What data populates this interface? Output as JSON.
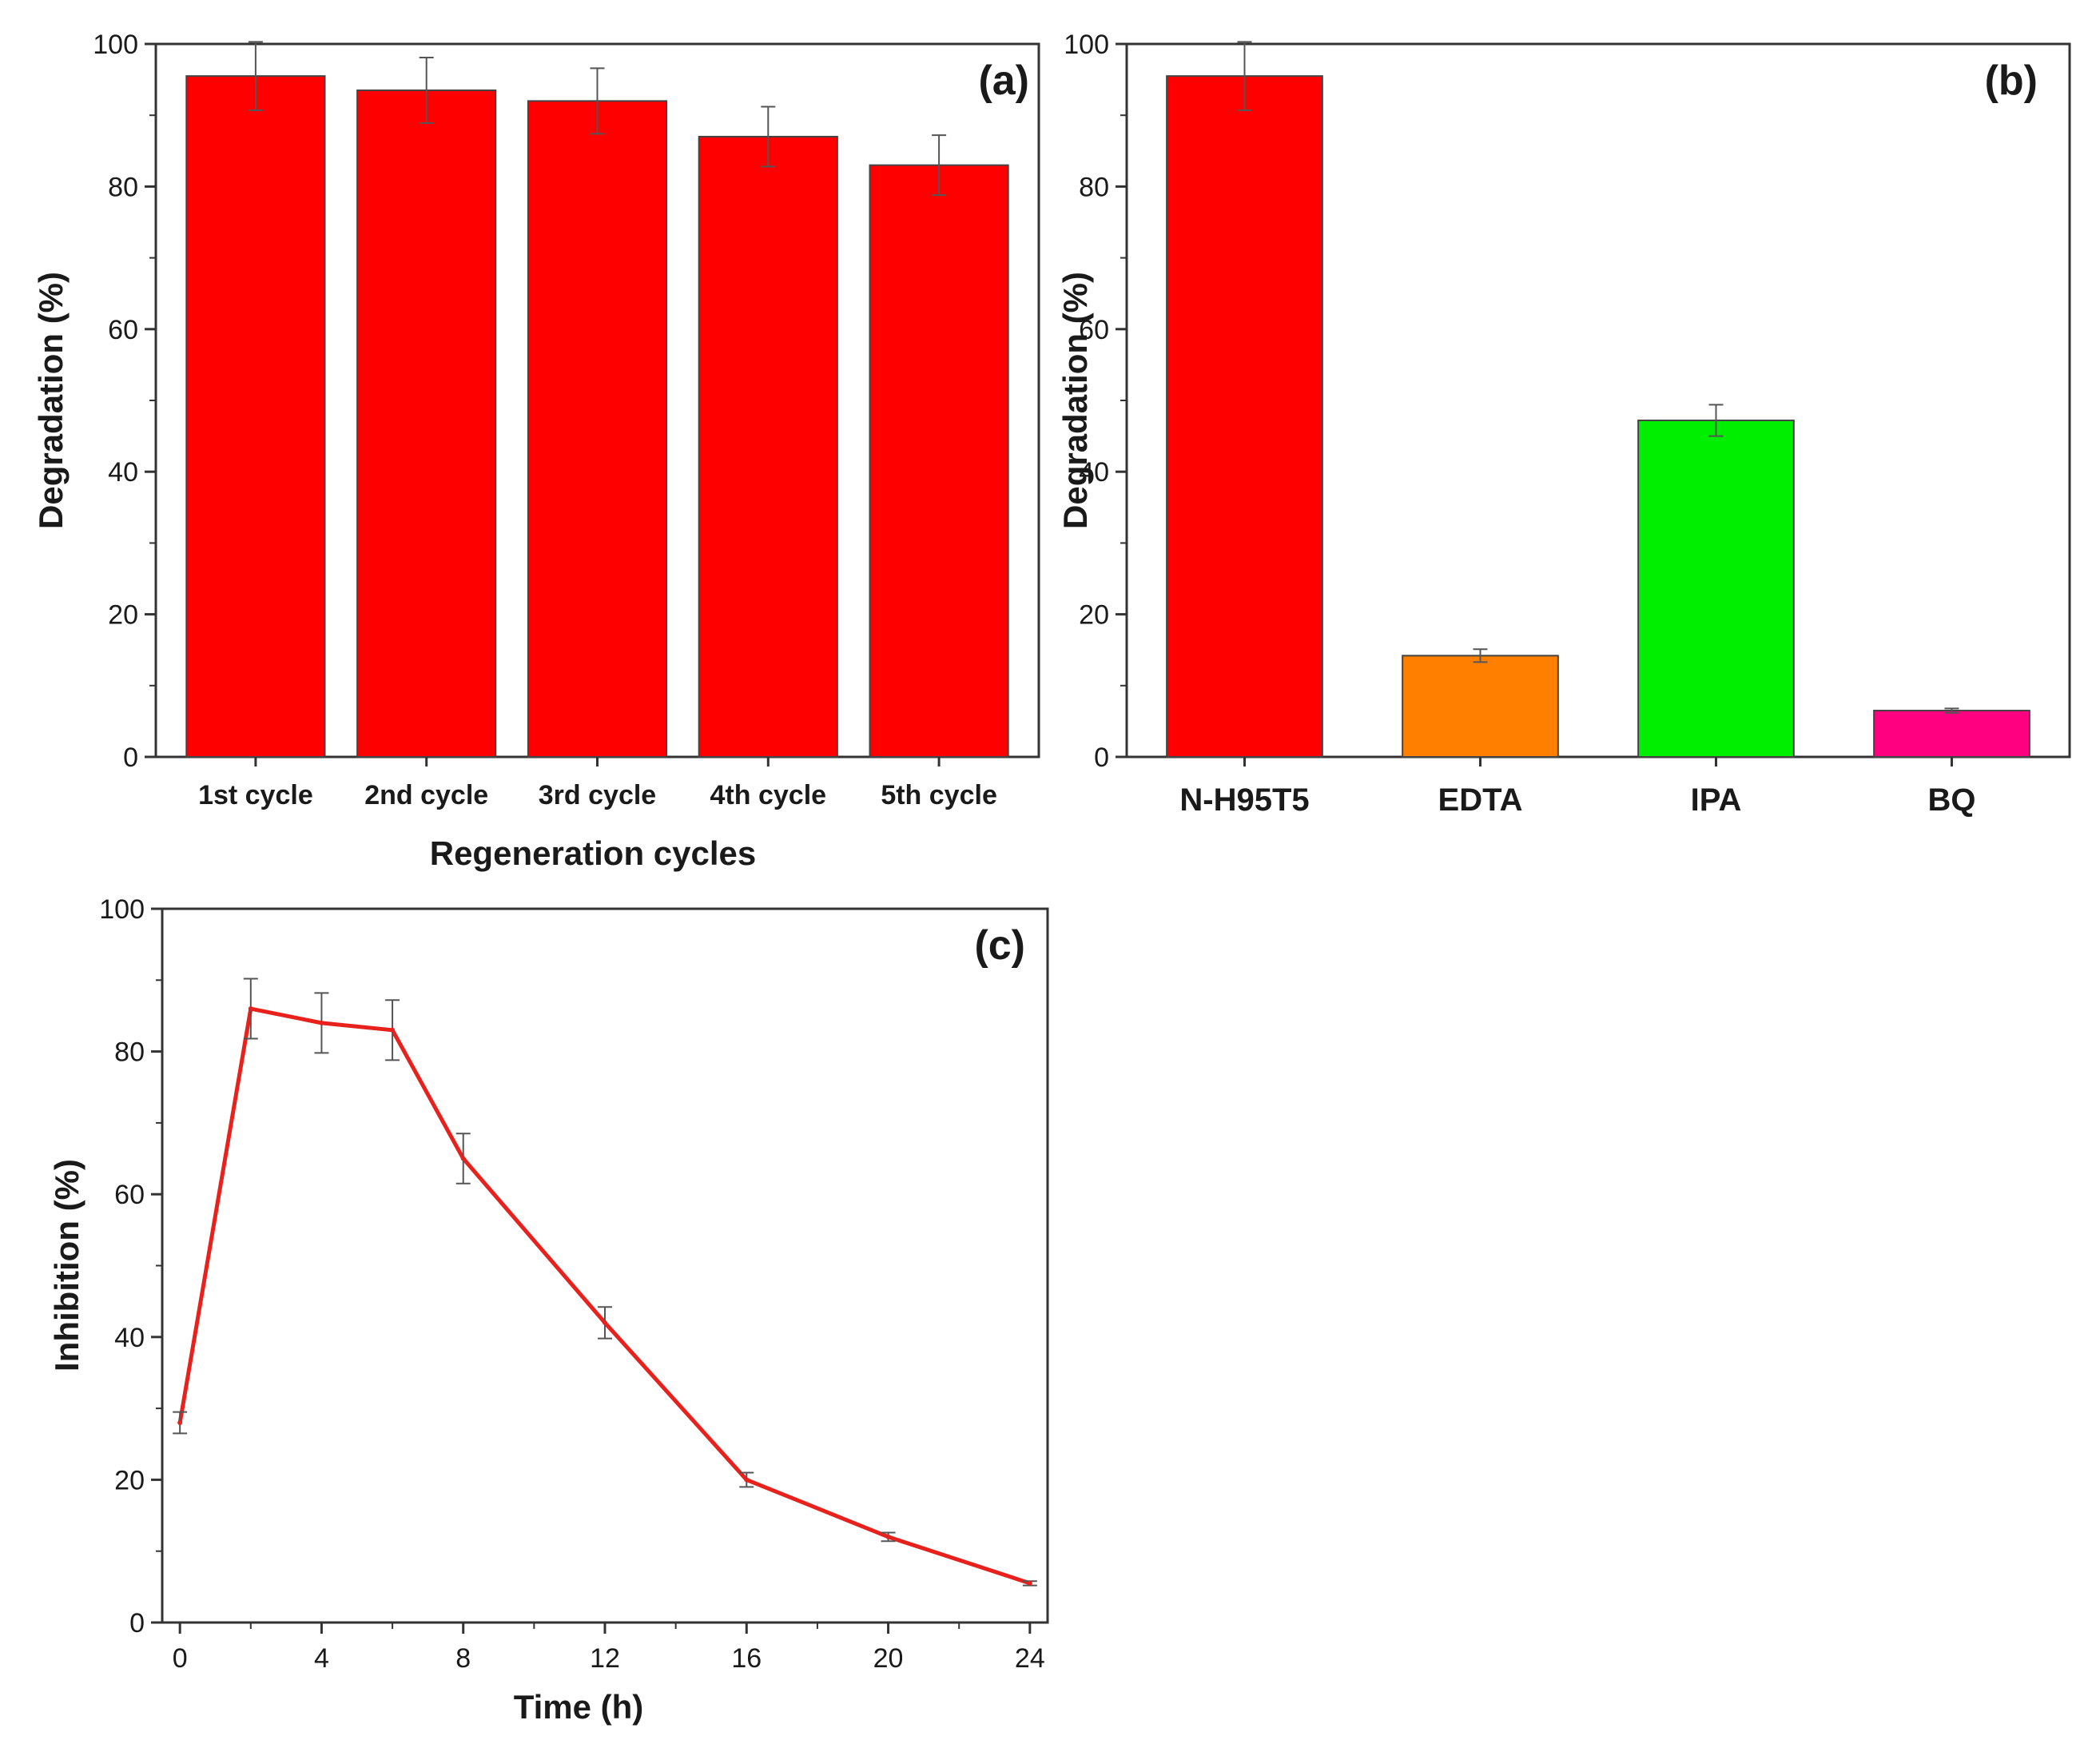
{
  "chart_data": [
    {
      "id": "a",
      "type": "bar",
      "panel_label": "(a)",
      "title": "",
      "xlabel": "Regeneration cycles",
      "ylabel": "Degradation (%)",
      "ylim": [
        0,
        100
      ],
      "yticks": [
        "0",
        "20",
        "40",
        "60",
        "80",
        "100"
      ],
      "categories": [
        "1st cycle",
        "2nd cycle",
        "3rd cycle",
        "4th cycle",
        "5th cycle"
      ],
      "values": [
        95.5,
        93.5,
        92,
        87,
        83
      ],
      "errors": [
        4.8,
        4.6,
        4.6,
        4.2,
        4.2
      ],
      "colors": [
        "#ff0000",
        "#ff0000",
        "#ff0000",
        "#ff0000",
        "#ff0000"
      ]
    },
    {
      "id": "b",
      "type": "bar",
      "panel_label": "(b)",
      "title": "",
      "xlabel": "",
      "ylabel": "Degradation (%)",
      "ylim": [
        0,
        100
      ],
      "yticks": [
        "0",
        "20",
        "40",
        "60",
        "80",
        "100"
      ],
      "categories": [
        "N-H95T5",
        "EDTA",
        "IPA",
        "BQ"
      ],
      "values": [
        95.5,
        14.2,
        47.2,
        6.5
      ],
      "errors": [
        4.8,
        0.9,
        2.2,
        0.3
      ],
      "colors": [
        "#ff0000",
        "#ff8000",
        "#00ee00",
        "#ff0080"
      ]
    },
    {
      "id": "c",
      "type": "line",
      "panel_label": "(c)",
      "title": "",
      "xlabel": "Time (h)",
      "ylabel": "Inhibition (%)",
      "xlim": [
        -0.5,
        24.5
      ],
      "ylim": [
        0,
        100
      ],
      "xticks": [
        "0",
        "4",
        "8",
        "12",
        "16",
        "20",
        "24"
      ],
      "yticks": [
        "0",
        "20",
        "40",
        "60",
        "80",
        "100"
      ],
      "series": [
        {
          "name": "Inhibition",
          "color": "#e8211c",
          "x": [
            0,
            2,
            4,
            6,
            8,
            12,
            16,
            20,
            24
          ],
          "values": [
            28,
            86,
            84,
            83,
            65,
            42,
            20,
            12,
            5.5
          ],
          "errors": [
            1.5,
            4.2,
            4.2,
            4.2,
            3.5,
            2.2,
            1.0,
            0.6,
            0.3
          ]
        }
      ]
    }
  ]
}
